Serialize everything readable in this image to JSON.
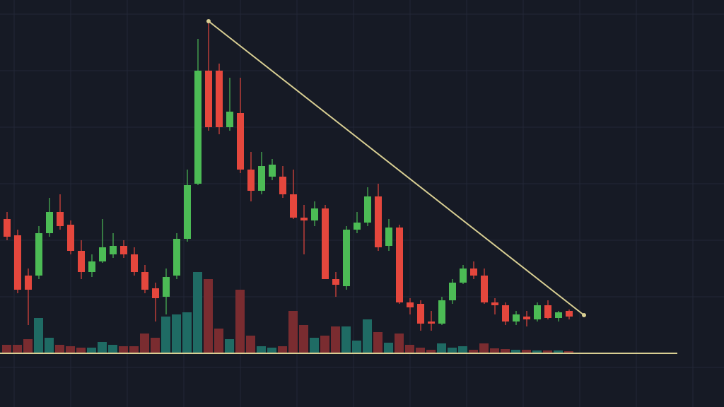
{
  "chart_data": {
    "type": "candlestick",
    "open": [
      190,
      167,
      110,
      110,
      170,
      200,
      182,
      145,
      115,
      130,
      140,
      152,
      140,
      115,
      92,
      80,
      110,
      162,
      240,
      400,
      400,
      320,
      340,
      260,
      230,
      250,
      250,
      225,
      192,
      188,
      205,
      105,
      95,
      175,
      185,
      222,
      152,
      178,
      72,
      70,
      45,
      42,
      75,
      100,
      120,
      110,
      72,
      68,
      45,
      52,
      48,
      68,
      50,
      60
    ],
    "high": [
      200,
      175,
      120,
      180,
      220,
      225,
      188,
      160,
      140,
      190,
      170,
      160,
      150,
      125,
      100,
      120,
      170,
      260,
      445,
      470,
      410,
      390,
      390,
      285,
      285,
      275,
      265,
      260,
      210,
      215,
      210,
      115,
      180,
      200,
      235,
      240,
      190,
      182,
      78,
      75,
      60,
      80,
      105,
      125,
      130,
      120,
      78,
      72,
      60,
      60,
      72,
      75,
      60,
      62
    ],
    "low": [
      160,
      85,
      40,
      105,
      165,
      175,
      140,
      105,
      108,
      128,
      135,
      135,
      110,
      85,
      45,
      55,
      105,
      158,
      238,
      315,
      310,
      315,
      255,
      215,
      225,
      245,
      220,
      190,
      140,
      180,
      105,
      80,
      90,
      170,
      180,
      145,
      145,
      70,
      55,
      32,
      32,
      40,
      70,
      98,
      105,
      70,
      55,
      40,
      40,
      38,
      45,
      48,
      45,
      48
    ],
    "close": [
      165,
      90,
      90,
      170,
      200,
      180,
      145,
      115,
      130,
      150,
      152,
      140,
      115,
      90,
      78,
      108,
      162,
      238,
      400,
      320,
      320,
      342,
      260,
      230,
      265,
      267,
      225,
      192,
      188,
      205,
      105,
      97,
      175,
      185,
      222,
      150,
      178,
      72,
      65,
      42,
      42,
      75,
      100,
      120,
      110,
      72,
      68,
      45,
      55,
      48,
      68,
      50,
      58,
      52
    ],
    "volume": [
      12,
      12,
      20,
      50,
      22,
      12,
      10,
      8,
      8,
      16,
      12,
      10,
      10,
      28,
      22,
      52,
      55,
      58,
      115,
      105,
      35,
      20,
      90,
      25,
      10,
      8,
      10,
      60,
      40,
      22,
      25,
      38,
      38,
      18,
      48,
      30,
      15,
      28,
      12,
      8,
      5,
      14,
      8,
      10,
      5,
      14,
      7,
      6,
      5,
      5,
      4,
      4,
      4,
      3
    ],
    "ylim": [
      0,
      500
    ],
    "vlim": [
      0,
      125
    ],
    "up_color": "#4cbb55",
    "down_color": "#e5473d",
    "volume_up_color": "#1f6b64",
    "volume_down_color": "#7a2c30",
    "trendline": {
      "x": [
        19,
        54.4
      ],
      "values": [
        470,
        54
      ],
      "color": "#d9cf93"
    }
  }
}
